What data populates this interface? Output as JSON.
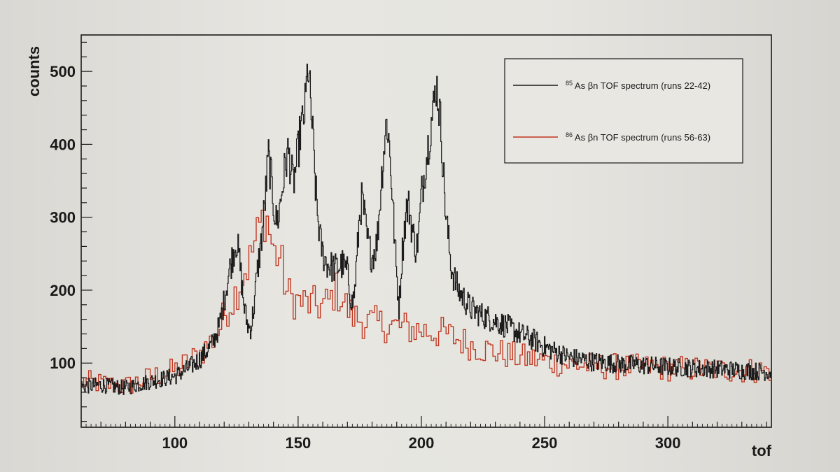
{
  "chart_data": {
    "type": "line",
    "subtype": "step-histogram",
    "title": "",
    "xlabel": "tof",
    "ylabel": "counts",
    "xlim": [
      62,
      342
    ],
    "ylim": [
      12,
      550
    ],
    "xticks": [
      100,
      150,
      200,
      250,
      300
    ],
    "xtick_labels": [
      "100",
      "150",
      "200",
      "250",
      "300"
    ],
    "yticks": [
      100,
      200,
      300,
      400,
      500
    ],
    "ytick_labels": [
      "100",
      "200",
      "300",
      "400",
      "500"
    ],
    "legend_position": "top-right",
    "series": [
      {
        "name": "85As βn TOF spectrum (runs 22-42)",
        "legend": {
          "sup": "85",
          "text": "As βn TOF spectrum (runs 22-42)"
        },
        "color": "#1c1c1c",
        "x": [
          62,
          70,
          80,
          90,
          100,
          105,
          110,
          115,
          118,
          120,
          122,
          124,
          125,
          126,
          127,
          128,
          129,
          130,
          131,
          132,
          133,
          134,
          135,
          136,
          137,
          138,
          139,
          140,
          141,
          142,
          143,
          144,
          145,
          146,
          147,
          148,
          149,
          150,
          151,
          152,
          153,
          154,
          155,
          156,
          157,
          158,
          159,
          160,
          162,
          165,
          168,
          170,
          171,
          172,
          173,
          174,
          175,
          176,
          177,
          178,
          180,
          182,
          183,
          184,
          185,
          186,
          187,
          188,
          189,
          190,
          191,
          192,
          193,
          194,
          195,
          196,
          197,
          198,
          199,
          200,
          202,
          204,
          205,
          206,
          207,
          208,
          209,
          210,
          211,
          212,
          213,
          215,
          220,
          225,
          230,
          235,
          240,
          245,
          250,
          255,
          260,
          270,
          280,
          290,
          300,
          310,
          320,
          330,
          340
        ],
        "values": [
          68,
          70,
          66,
          75,
          82,
          92,
          105,
          125,
          150,
          185,
          225,
          255,
          268,
          248,
          215,
          180,
          160,
          148,
          150,
          175,
          210,
          240,
          265,
          300,
          340,
          385,
          355,
          320,
          295,
          300,
          325,
          350,
          375,
          390,
          370,
          345,
          365,
          390,
          420,
          430,
          455,
          510,
          460,
          410,
          345,
          300,
          270,
          250,
          235,
          230,
          235,
          225,
          200,
          180,
          200,
          250,
          305,
          325,
          300,
          270,
          245,
          265,
          310,
          360,
          400,
          435,
          400,
          345,
          280,
          220,
          175,
          240,
          280,
          310,
          315,
          290,
          270,
          255,
          280,
          330,
          380,
          430,
          450,
          485,
          460,
          420,
          360,
          300,
          270,
          235,
          220,
          200,
          175,
          165,
          158,
          150,
          140,
          133,
          122,
          115,
          108,
          102,
          99,
          97,
          95,
          93,
          92,
          90,
          88
        ]
      },
      {
        "name": "86As βn TOF spectrum (runs 56-63)",
        "legend": {
          "sup": "86",
          "text": "As βn TOF spectrum (runs 56-63)"
        },
        "color": "#c0341d",
        "x": [
          62,
          70,
          80,
          90,
          100,
          105,
          110,
          115,
          118,
          120,
          122,
          124,
          125,
          126,
          127,
          128,
          130,
          132,
          134,
          136,
          137,
          138,
          139,
          140,
          141,
          142,
          143,
          144,
          145,
          147,
          150,
          155,
          160,
          163,
          165,
          168,
          170,
          172,
          175,
          180,
          190,
          200,
          210,
          220,
          230,
          240,
          250,
          260,
          270,
          280,
          290,
          300,
          310,
          320,
          330,
          340
        ],
        "values": [
          75,
          72,
          68,
          80,
          90,
          100,
          112,
          130,
          145,
          165,
          180,
          190,
          200,
          205,
          215,
          225,
          235,
          260,
          280,
          300,
          305,
          290,
          270,
          255,
          245,
          250,
          240,
          225,
          200,
          190,
          185,
          180,
          178,
          185,
          200,
          190,
          175,
          165,
          160,
          155,
          150,
          145,
          140,
          125,
          115,
          108,
          103,
          98,
          96,
          95,
          94,
          93,
          92,
          91,
          90,
          90
        ]
      }
    ]
  }
}
